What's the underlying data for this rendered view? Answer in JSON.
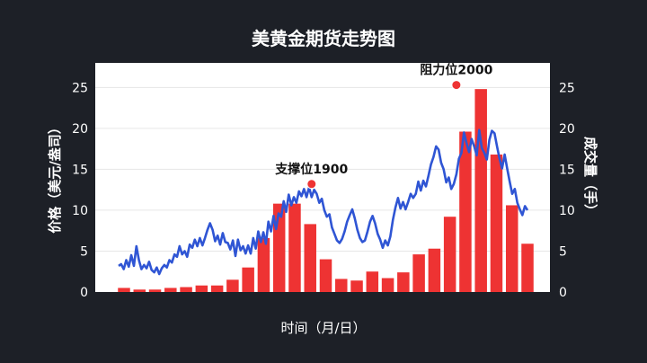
{
  "chart_data": {
    "type": "bar+line",
    "title": "美黄金期货走势图",
    "xlabel": "时间（月/日）",
    "ylabel_left": "价格（美元/盎司）",
    "ylabel_right": "成交量（手）",
    "ylim_left": [
      0,
      28
    ],
    "ylim_right": [
      0,
      28
    ],
    "yticks_left": [
      0,
      5,
      10,
      15,
      20,
      25
    ],
    "yticks_right": [
      0,
      5,
      10,
      15,
      20,
      25
    ],
    "grid": true,
    "legend": "none",
    "colors": {
      "background": "#1d2027",
      "plot_background": "#ffffff",
      "bars": "#ee3333",
      "line": "#2f55d4",
      "text": "#ffffff",
      "annotation": "#111111",
      "marker": "#ee3333"
    },
    "bars": {
      "name": "成交量",
      "values": [
        0.5,
        0.3,
        0.3,
        0.5,
        0.6,
        0.8,
        0.8,
        1.5,
        3.0,
        6.6,
        10.8,
        10.8,
        8.3,
        4.0,
        1.6,
        1.4,
        2.5,
        1.7,
        2.4,
        4.6,
        5.3,
        9.2,
        19.6,
        24.8,
        16.8,
        10.6,
        5.9
      ]
    },
    "price": {
      "name": "价格",
      "values": [
        3.2,
        3.4,
        2.8,
        3.9,
        3.1,
        4.5,
        3.2,
        5.6,
        3.9,
        2.8,
        3.3,
        2.9,
        3.7,
        2.7,
        2.4,
        3.0,
        2.2,
        2.9,
        3.3,
        3.0,
        3.9,
        3.6,
        4.6,
        4.3,
        5.6,
        4.6,
        5.0,
        4.3,
        5.8,
        5.4,
        6.4,
        5.6,
        6.6,
        5.7,
        6.6,
        7.6,
        8.4,
        7.6,
        6.2,
        6.9,
        5.8,
        7.2,
        6.1,
        6.0,
        5.2,
        6.3,
        4.4,
        6.4,
        5.1,
        5.6,
        4.7,
        5.7,
        4.7,
        6.6,
        5.3,
        7.4,
        6.1,
        7.3,
        5.9,
        8.6,
        7.4,
        9.3,
        7.7,
        9.6,
        9.2,
        11.1,
        9.8,
        11.9,
        10.6,
        11.6,
        10.9,
        12.3,
        11.7,
        12.6,
        11.6,
        12.8,
        11.6,
        12.5,
        12.0,
        10.9,
        11.4,
        10.0,
        9.2,
        9.5,
        7.9,
        7.1,
        6.3,
        6.0,
        6.5,
        7.4,
        8.6,
        9.4,
        10.1,
        9.0,
        7.6,
        6.6,
        6.1,
        6.3,
        7.4,
        8.6,
        9.3,
        8.4,
        7.1,
        6.4,
        5.4,
        6.3,
        5.7,
        6.8,
        8.8,
        10.3,
        11.5,
        10.2,
        11.0,
        10.1,
        11.0,
        12.0,
        11.5,
        12.0,
        13.5,
        12.4,
        13.6,
        12.9,
        14.2,
        15.6,
        16.5,
        17.8,
        17.4,
        15.8,
        15.0,
        13.4,
        14.0,
        12.6,
        13.2,
        14.4,
        16.3,
        17.0,
        19.5,
        18.2,
        17.1,
        18.7,
        17.8,
        16.7,
        19.8,
        17.6,
        17.0,
        16.2,
        18.6,
        19.7,
        19.4,
        17.8,
        16.3,
        15.1,
        16.8,
        15.1,
        13.5,
        12.0,
        12.6,
        10.9,
        10.1,
        9.4,
        10.5,
        10.0
      ]
    },
    "annotations": [
      {
        "text": "支撑位1900",
        "x_index": 76,
        "y": 13.2
      },
      {
        "text": "阻力位2000",
        "x_index": 133,
        "y": 25.3
      }
    ]
  }
}
